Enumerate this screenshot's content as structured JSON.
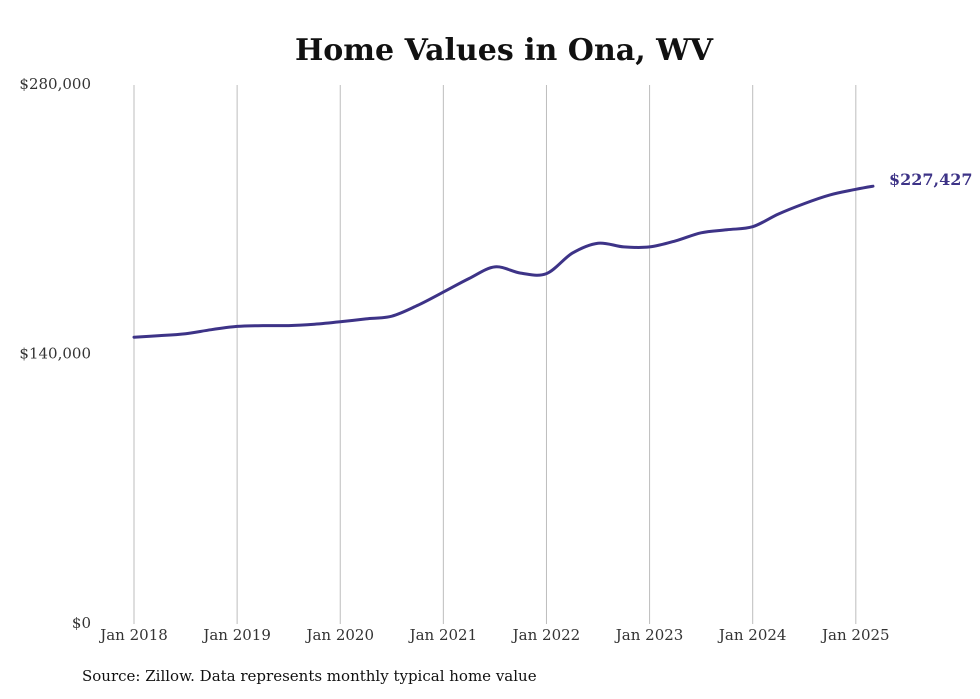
{
  "chart_data": {
    "type": "line",
    "title": "Home Values in Ona, WV",
    "xlabel": "",
    "ylabel": "",
    "ylim": [
      0,
      280000
    ],
    "xlim": [
      "2018-01",
      "2025-03"
    ],
    "yticks": [
      {
        "value": 0,
        "label": "$0"
      },
      {
        "value": 140000,
        "label": "$140,000"
      },
      {
        "value": 280000,
        "label": "$280,000"
      }
    ],
    "xticks": [
      {
        "value": "2018-01",
        "label": "Jan 2018"
      },
      {
        "value": "2019-01",
        "label": "Jan 2019"
      },
      {
        "value": "2020-01",
        "label": "Jan 2020"
      },
      {
        "value": "2021-01",
        "label": "Jan 2021"
      },
      {
        "value": "2022-01",
        "label": "Jan 2022"
      },
      {
        "value": "2023-01",
        "label": "Jan 2023"
      },
      {
        "value": "2024-01",
        "label": "Jan 2024"
      },
      {
        "value": "2025-01",
        "label": "Jan 2025"
      }
    ],
    "grid": {
      "vertical": true,
      "horizontal": false
    },
    "legend": "none",
    "line_color": "#3d3387",
    "end_label": "$227,427",
    "series": [
      {
        "x": [
          "2018-01",
          "2018-04",
          "2018-07",
          "2018-10",
          "2019-01",
          "2019-04",
          "2019-07",
          "2019-10",
          "2020-01",
          "2020-04",
          "2020-07",
          "2020-10",
          "2021-01",
          "2021-04",
          "2021-07",
          "2021-10",
          "2022-01",
          "2022-04",
          "2022-07",
          "2022-10",
          "2023-01",
          "2023-04",
          "2023-07",
          "2023-10",
          "2024-01",
          "2024-04",
          "2024-07",
          "2024-10",
          "2025-01",
          "2025-03"
        ],
        "y": [
          149000,
          149800,
          150800,
          152900,
          154600,
          155000,
          155000,
          155700,
          157000,
          158500,
          159900,
          165500,
          172400,
          179500,
          185500,
          182300,
          182000,
          192600,
          197800,
          195900,
          195900,
          199000,
          203200,
          204800,
          206400,
          213000,
          218400,
          222900,
          225800,
          227427
        ]
      }
    ]
  },
  "footer": {
    "source": "Source: Zillow. Data represents monthly typical home value"
  }
}
